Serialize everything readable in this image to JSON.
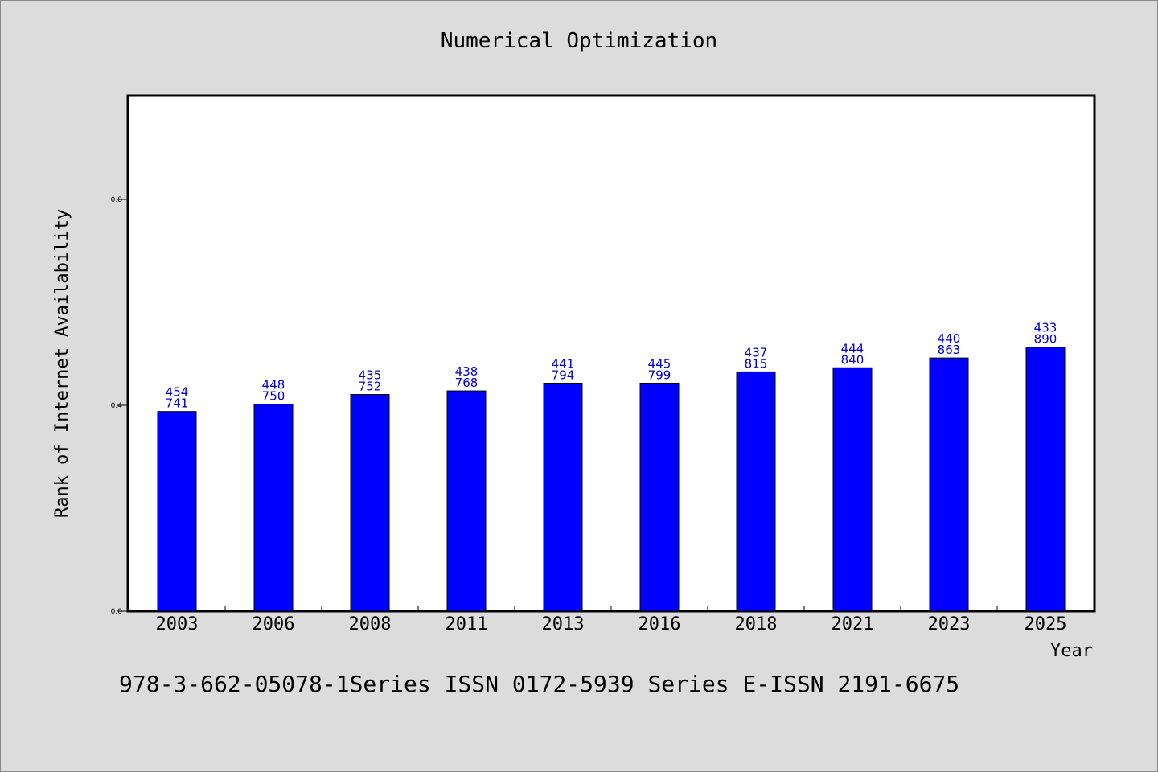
{
  "chart_data": {
    "type": "bar",
    "title": "Numerical Optimization",
    "xlabel": "Year",
    "ylabel": "Rank of Internet Availability",
    "ylim": [
      0,
      1.0
    ],
    "yticks": [
      "0.0",
      "0.4",
      "0.8"
    ],
    "grid": false,
    "bar_color": "#0000ff",
    "label_color": "#0000cc",
    "categories": [
      "2003",
      "2006",
      "2008",
      "2011",
      "2013",
      "2016",
      "2018",
      "2021",
      "2023",
      "2025"
    ],
    "values": [
      0.388,
      0.402,
      0.421,
      0.428,
      0.443,
      0.443,
      0.465,
      0.473,
      0.492,
      0.513
    ],
    "bar_labels": [
      [
        "454",
        "741"
      ],
      [
        "448",
        "750"
      ],
      [
        "435",
        "752"
      ],
      [
        "438",
        "768"
      ],
      [
        "441",
        "794"
      ],
      [
        "445",
        "799"
      ],
      [
        "437",
        "815"
      ],
      [
        "444",
        "840"
      ],
      [
        "440",
        "863"
      ],
      [
        "433",
        "890"
      ]
    ]
  },
  "footer_text": "978-3-662-05078-1Series ISSN 0172-5939 Series E-ISSN 2191-6675"
}
